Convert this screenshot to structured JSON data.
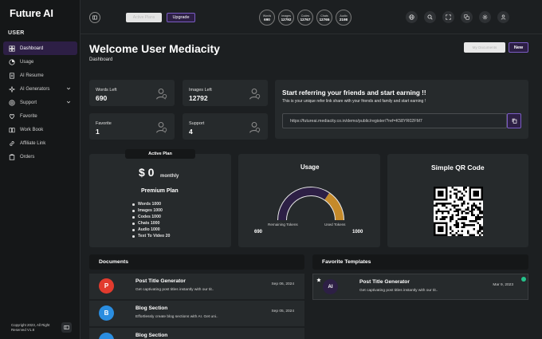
{
  "app": {
    "logo": "Future AI"
  },
  "sidebar": {
    "section": "USER",
    "items": [
      {
        "label": "Dashboard",
        "icon": "dashboard-icon",
        "active": true,
        "chevron": false
      },
      {
        "label": "Usage",
        "icon": "usage-icon",
        "active": false,
        "chevron": false
      },
      {
        "label": "AI Resume",
        "icon": "resume-icon",
        "active": false,
        "chevron": false
      },
      {
        "label": "AI Generators",
        "icon": "generators-icon",
        "active": false,
        "chevron": true
      },
      {
        "label": "Support",
        "icon": "support-icon",
        "active": false,
        "chevron": true
      },
      {
        "label": "Favorite",
        "icon": "heart-icon",
        "active": false,
        "chevron": false
      },
      {
        "label": "Work Book",
        "icon": "workbook-icon",
        "active": false,
        "chevron": false
      },
      {
        "label": "Affiliate Link",
        "icon": "link-icon",
        "active": false,
        "chevron": false
      },
      {
        "label": "Orders",
        "icon": "orders-icon",
        "active": false,
        "chevron": false
      }
    ],
    "copyright": "Copyright 2023, All Right Reserved V1.8"
  },
  "header": {
    "active_plan_label": "Active Plans",
    "upgrade_label": "Upgrade",
    "stats": [
      {
        "label": "Words",
        "value": "690"
      },
      {
        "label": "Images",
        "value": "12792"
      },
      {
        "label": "Codes",
        "value": "12767"
      },
      {
        "label": "Chats",
        "value": "12765"
      },
      {
        "label": "Audio",
        "value": "2198"
      }
    ]
  },
  "main": {
    "welcome": "Welcome User Mediacity",
    "breadcrumb": "Dashboard",
    "my_documents_label": "My Documents",
    "new_label": "New",
    "mini_cards": [
      {
        "label": "Words Left",
        "value": "690"
      },
      {
        "label": "Images Left",
        "value": "12792"
      },
      {
        "label": "Favorite",
        "value": "1"
      },
      {
        "label": "Support",
        "value": "4"
      }
    ],
    "referral": {
      "title": "Start referring your friends and start earning !!",
      "subtitle": "This is your unique refer link share with your friends and family and start earning !",
      "link": "https://futureai.mediacity.co.in/demo/public/register/?ref=K58YR02FM7"
    },
    "plan": {
      "badge": "Active Plan",
      "price": "$ 0",
      "period": "monthly",
      "name": "Premium Plan",
      "features": [
        "Words 1000",
        "Images 1000",
        "Codes 1000",
        "Chats 1000",
        "Audio 1000",
        "Text To Video 20",
        "Image To Video 20"
      ]
    },
    "usage": {
      "title": "Usage",
      "remaining_label": "Remaining Tokens",
      "used_label": "Used Tokens",
      "remaining_value": "690",
      "total_value": "1000",
      "used_fraction": 0.31,
      "remaining_color": "#2d1f45",
      "used_color": "#c58a2a"
    },
    "qr": {
      "title": "Simple QR Code"
    },
    "documents": {
      "title": "Documents",
      "rows": [
        {
          "initial": "P",
          "color": "#e23b2e",
          "title": "Post Title Generator",
          "desc": "Get captivating post titles instantly with our tit..",
          "date": "Sep 06, 2024"
        },
        {
          "initial": "B",
          "color": "#2a8de0",
          "title": "Blog Section",
          "desc": "Effortlessly create blog sections with AI. Get uni..",
          "date": "Sep 05, 2024"
        },
        {
          "initial": "",
          "color": "#2a8de0",
          "title": "Blog Section",
          "desc": "",
          "date": ""
        }
      ]
    },
    "favorites": {
      "title": "Favorite Templates",
      "rows": [
        {
          "initial": "AI",
          "title": "Post Title Generator",
          "desc": "Get captivating post titles instantly with our tit..",
          "date": "Mar 9, 2023"
        }
      ]
    }
  }
}
